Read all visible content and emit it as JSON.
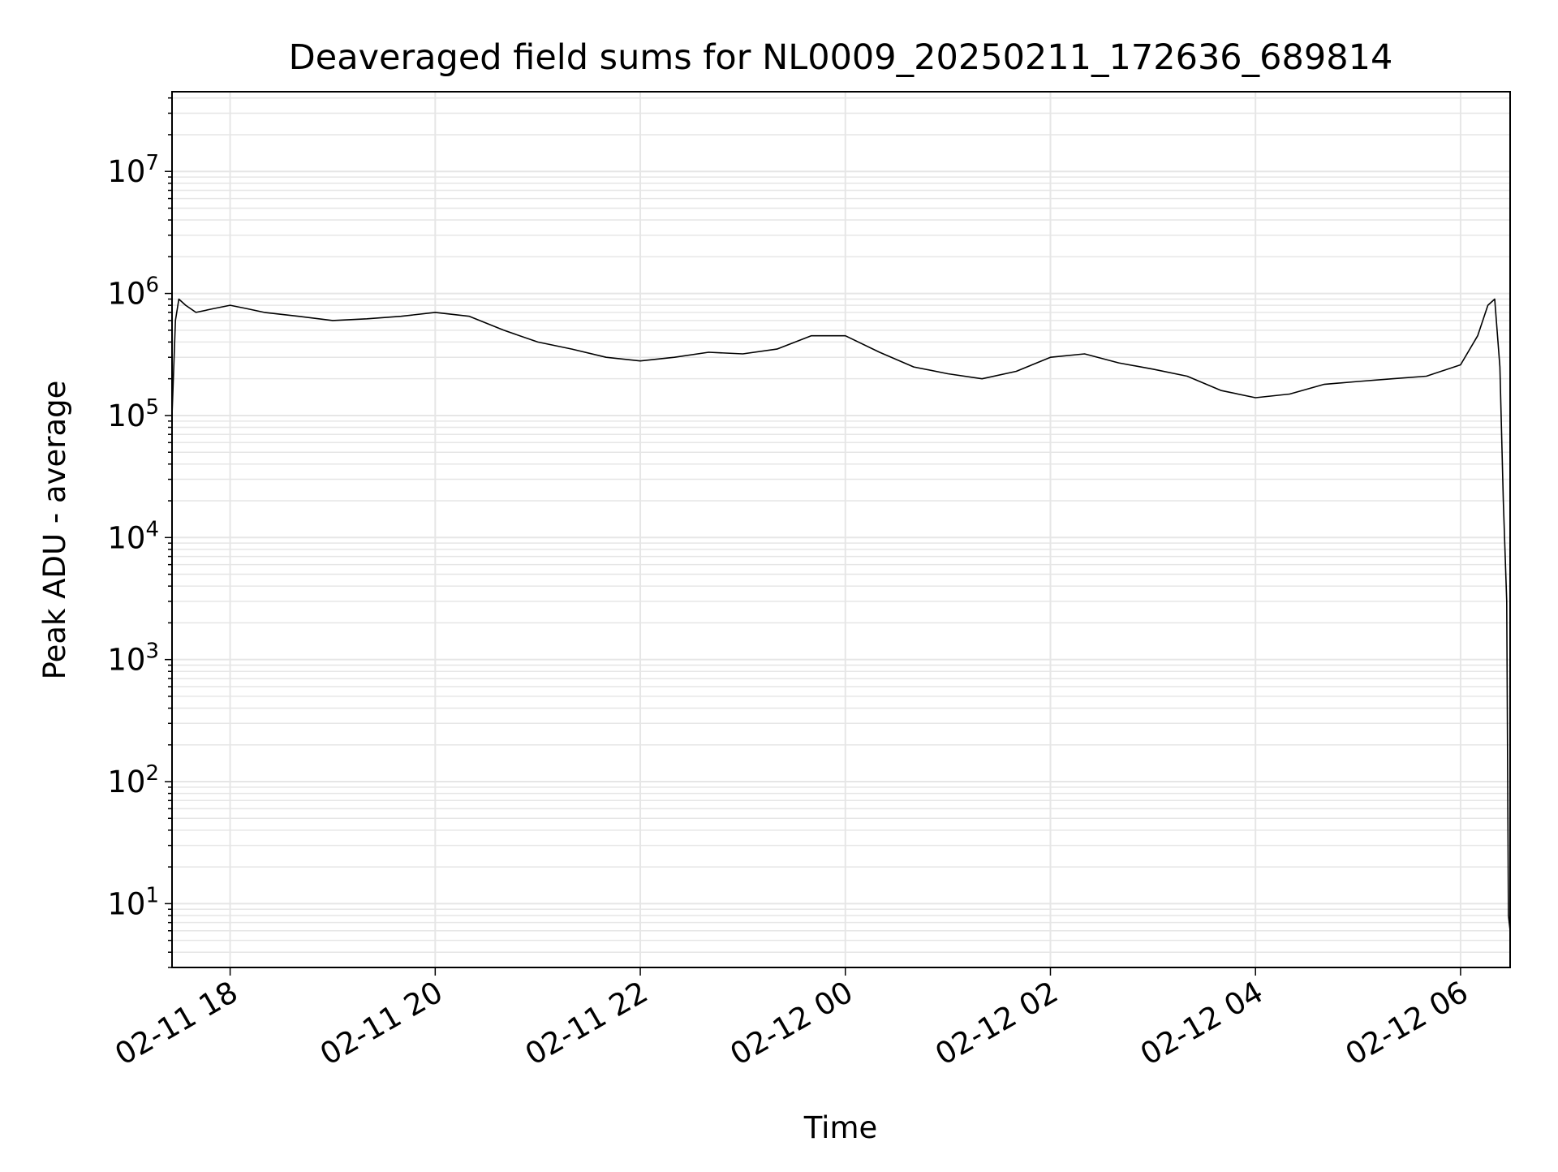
{
  "chart_data": {
    "type": "line",
    "title": "Deaveraged field sums for NL0009_20250211_172636_689814",
    "xlabel": "Time",
    "ylabel": "Peak ADU - average",
    "yscale": "log",
    "ylim": [
      3,
      45000000
    ],
    "xlim": [
      "02-11 17:26",
      "02-12 06:29"
    ],
    "grid": true,
    "line_color": "#000000",
    "grid_color": "#e6e6e6",
    "x_ticks": [
      {
        "t": "02-11 18:00",
        "label": "02-11 18"
      },
      {
        "t": "02-11 20:00",
        "label": "02-11 20"
      },
      {
        "t": "02-11 22:00",
        "label": "02-11 22"
      },
      {
        "t": "02-12 00:00",
        "label": "02-12 00"
      },
      {
        "t": "02-12 02:00",
        "label": "02-12 02"
      },
      {
        "t": "02-12 04:00",
        "label": "02-12 04"
      },
      {
        "t": "02-12 06:00",
        "label": "02-12 06"
      }
    ],
    "y_ticks": [
      {
        "value": 10,
        "base": "10",
        "exp": "1"
      },
      {
        "value": 100,
        "base": "10",
        "exp": "2"
      },
      {
        "value": 1000,
        "base": "10",
        "exp": "3"
      },
      {
        "value": 10000,
        "base": "10",
        "exp": "4"
      },
      {
        "value": 100000,
        "base": "10",
        "exp": "5"
      },
      {
        "value": 1000000,
        "base": "10",
        "exp": "6"
      },
      {
        "value": 10000000,
        "base": "10",
        "exp": "7"
      }
    ],
    "series": [
      {
        "x": [
          "02-11 17:26",
          "02-11 17:28",
          "02-11 17:30",
          "02-11 17:34",
          "02-11 17:40",
          "02-11 17:50",
          "02-11 18:00",
          "02-11 18:10",
          "02-11 18:20",
          "02-11 18:40",
          "02-11 19:00",
          "02-11 19:20",
          "02-11 19:40",
          "02-11 20:00",
          "02-11 20:20",
          "02-11 20:40",
          "02-11 21:00",
          "02-11 21:20",
          "02-11 21:40",
          "02-11 22:00",
          "02-11 22:20",
          "02-11 22:40",
          "02-11 23:00",
          "02-11 23:20",
          "02-11 23:40",
          "02-12 00:00",
          "02-12 00:20",
          "02-12 00:40",
          "02-12 01:00",
          "02-12 01:20",
          "02-12 01:40",
          "02-12 02:00",
          "02-12 02:20",
          "02-12 02:40",
          "02-12 03:00",
          "02-12 03:20",
          "02-12 03:40",
          "02-12 04:00",
          "02-12 04:20",
          "02-12 04:40",
          "02-12 05:00",
          "02-12 05:20",
          "02-12 05:40",
          "02-12 06:00",
          "02-12 06:10",
          "02-12 06:16",
          "02-12 06:20",
          "02-12 06:23",
          "02-12 06:25",
          "02-12 06:27",
          "02-12 06:28",
          "02-12 06:29"
        ],
        "y": [
          100000,
          600000,
          900000,
          800000,
          700000,
          750000,
          800000,
          750000,
          700000,
          650000,
          600000,
          620000,
          650000,
          700000,
          650000,
          500000,
          400000,
          350000,
          300000,
          280000,
          300000,
          330000,
          320000,
          350000,
          450000,
          450000,
          330000,
          250000,
          220000,
          200000,
          230000,
          300000,
          320000,
          270000,
          240000,
          210000,
          160000,
          140000,
          150000,
          180000,
          190000,
          200000,
          210000,
          260000,
          450000,
          800000,
          900000,
          250000,
          20000,
          3000,
          8,
          6
        ]
      }
    ]
  }
}
